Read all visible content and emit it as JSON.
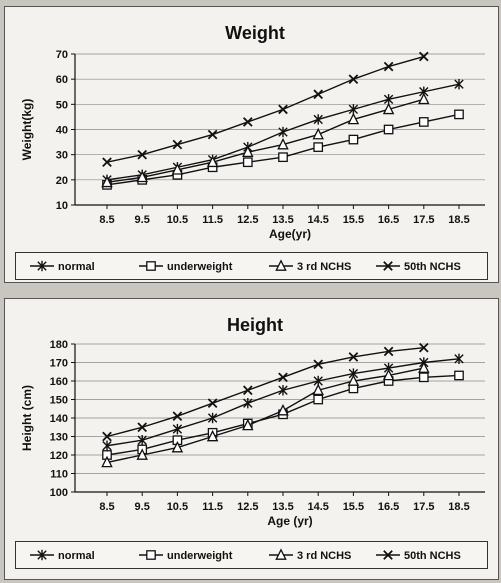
{
  "chart_data": [
    {
      "type": "line",
      "title": "Weight",
      "xlabel": "Age(yr)",
      "ylabel": "Weight(kg)",
      "ylim": [
        10,
        70
      ],
      "yticks": [
        10,
        20,
        30,
        40,
        50,
        60,
        70
      ],
      "x": [
        "8.5",
        "9.5",
        "10.5",
        "11.5",
        "12.5",
        "13.5",
        "14.5",
        "15.5",
        "16.5",
        "17.5",
        "18.5"
      ],
      "series": [
        {
          "name": "normal",
          "marker": "asterisk",
          "values": [
            20,
            22,
            25,
            28,
            33,
            39,
            44,
            48,
            52,
            55,
            58
          ]
        },
        {
          "name": "underweight",
          "marker": "square",
          "values": [
            18,
            20,
            22,
            25,
            27,
            29,
            33,
            36,
            40,
            43,
            46
          ]
        },
        {
          "name": "3 rd NCHS",
          "marker": "triangle",
          "values": [
            19,
            21,
            24,
            27,
            31,
            34,
            38,
            44,
            48,
            52,
            null
          ]
        },
        {
          "name": "50th NCHS",
          "marker": "x",
          "values": [
            27,
            30,
            34,
            38,
            43,
            48,
            54,
            60,
            65,
            69,
            null
          ]
        }
      ],
      "legend_position": "bottom"
    },
    {
      "type": "line",
      "title": "Height",
      "xlabel": "Age (yr)",
      "ylabel": "Height (cm)",
      "ylim": [
        100,
        180
      ],
      "yticks": [
        100,
        110,
        120,
        130,
        140,
        150,
        160,
        170,
        180
      ],
      "x": [
        "8.5",
        "9.5",
        "10.5",
        "11.5",
        "12.5",
        "13.5",
        "14.5",
        "15.5",
        "16.5",
        "17.5",
        "18.5"
      ],
      "series": [
        {
          "name": "normal",
          "marker": "asterisk",
          "values": [
            125,
            128,
            134,
            140,
            148,
            155,
            160,
            164,
            167,
            170,
            172
          ]
        },
        {
          "name": "underweight",
          "marker": "square",
          "values": [
            120,
            123,
            128,
            132,
            137,
            142,
            150,
            156,
            160,
            162,
            163
          ]
        },
        {
          "name": "3 rd NCHS",
          "marker": "triangle",
          "values": [
            116,
            120,
            124,
            130,
            136,
            144,
            155,
            160,
            163,
            167,
            null
          ]
        },
        {
          "name": "50th NCHS",
          "marker": "x",
          "values": [
            130,
            135,
            141,
            148,
            155,
            162,
            169,
            173,
            176,
            178,
            null
          ]
        }
      ],
      "legend_position": "bottom"
    }
  ]
}
